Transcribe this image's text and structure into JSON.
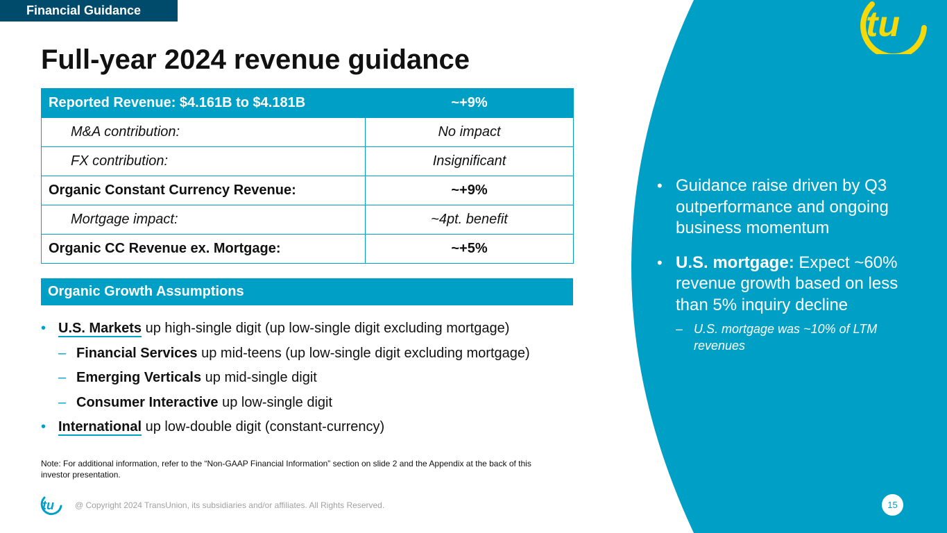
{
  "section_tag": "Financial Guidance",
  "title": "Full-year 2024 revenue guidance",
  "revenue_table": {
    "rows": [
      {
        "label": "Reported Revenue: $4.161B to $4.181B",
        "value": "~+9%"
      },
      {
        "label": "M&A contribution:",
        "value": "No impact"
      },
      {
        "label": "FX contribution:",
        "value": "Insignificant"
      },
      {
        "label": "Organic Constant Currency Revenue:",
        "value": "~+9%"
      },
      {
        "label": "Mortgage impact:",
        "value": "~4pt. benefit"
      },
      {
        "label": "Organic CC Revenue ex. Mortgage:",
        "value": "~+5%"
      }
    ]
  },
  "assumptions": {
    "header": "Organic Growth Assumptions",
    "items": [
      {
        "marker": "•",
        "highlight": "U.S. Markets",
        "text": " up high-single digit (up low-single digit excluding mortgage)"
      },
      {
        "marker": "–",
        "highlight": "Financial Services",
        "text": " up mid-teens (up low-single digit excluding mortgage)"
      },
      {
        "marker": "–",
        "highlight": "Emerging Verticals",
        "text": " up mid-single digit"
      },
      {
        "marker": "–",
        "highlight": "Consumer Interactive",
        "text": " up low-single digit"
      },
      {
        "marker": "•",
        "highlight": "International",
        "text": " up low-double digit (constant-currency)"
      }
    ]
  },
  "note": "Note: For additional information, refer to the “Non-GAAP Financial Information” section on slide 2 and the Appendix at the back of this investor presentation.",
  "right_panel": {
    "bullet1": {
      "marker": "•",
      "text": "Guidance raise driven by Q3 outperformance and ongoing business momentum"
    },
    "bullet2": {
      "marker": "•",
      "bold": "U.S. mortgage:",
      "text": " Expect ~60% revenue growth based on less than 5% inquiry decline"
    },
    "sub_bullet": {
      "marker": "–",
      "text": "U.S. mortgage was ~10% of LTM revenues"
    }
  },
  "footer": {
    "copyright": "@ Copyright 2024 TransUnion, its subsidiaries and/or affiliates.  All Rights Reserved.",
    "page_number": "15"
  },
  "brand": {
    "logo_icon": "tu-logo-icon",
    "colors": {
      "primary": "#00a0c6",
      "dark": "#004a6b",
      "accent": "#f5d90a"
    }
  }
}
